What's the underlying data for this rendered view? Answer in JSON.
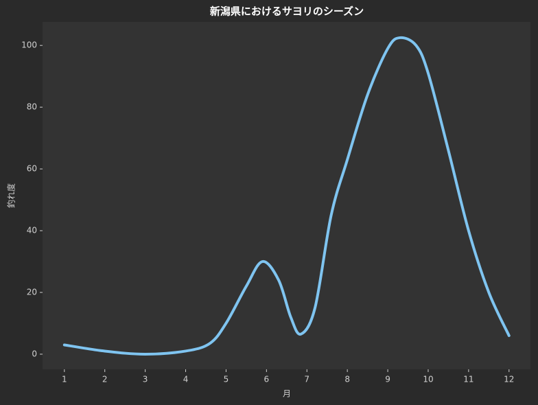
{
  "chart_data": {
    "type": "line",
    "title": "新潟県におけるサヨリのシーズン",
    "x_label": "月",
    "y_label": "釣れ度",
    "x": [
      1,
      2,
      3,
      4,
      4.6,
      5,
      5.5,
      5.9,
      6.3,
      6.6,
      6.85,
      7.2,
      7.6,
      8,
      8.5,
      9,
      9.3,
      9.7,
      10,
      10.5,
      11,
      11.5,
      12
    ],
    "series": [
      {
        "name": "釣れ度",
        "color": "#7fc4f0",
        "values": [
          3,
          1,
          0,
          1,
          3.5,
          10,
          22,
          30,
          24,
          12,
          6.5,
          15,
          45,
          63,
          84,
          99,
          102.5,
          100,
          91,
          66,
          40,
          20,
          6
        ]
      }
    ],
    "xlim": [
      0.46,
      12.53
    ],
    "xticks": [
      1,
      2,
      3,
      4,
      5,
      6,
      7,
      8,
      9,
      10,
      11,
      12
    ],
    "ylim": [
      -4.9,
      107.6
    ],
    "yticks": [
      0,
      20,
      40,
      60,
      80,
      100
    ],
    "grid": false,
    "background": "#2a2a2a",
    "plot_background": "#333333"
  }
}
